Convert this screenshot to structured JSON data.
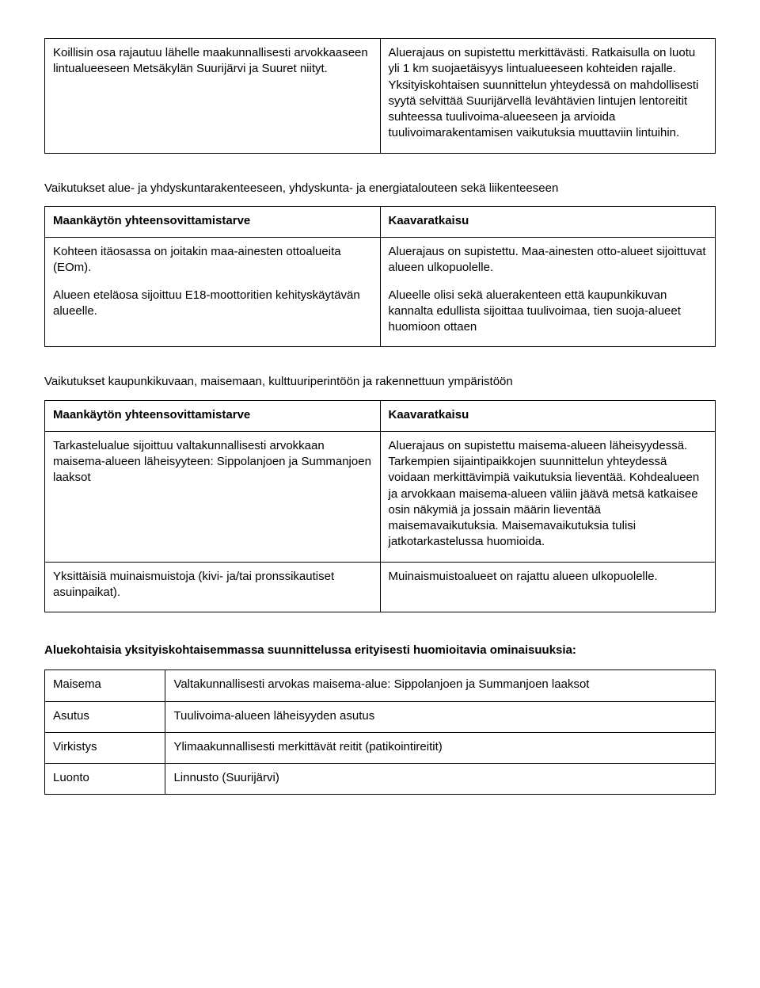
{
  "table1": {
    "row": {
      "left": "Koillisin osa rajautuu lähelle maakunnallisesti arvokkaaseen lintualueeseen Metsäkylän Suurijärvi ja Suuret niityt.",
      "right": "Aluerajaus on supistettu merkittävästi. Ratkaisulla on luotu yli 1 km suojaetäisyys lintualueeseen kohteiden rajalle. Yksityiskohtaisen suunnittelun yhteydessä on mahdollisesti syytä selvittää Suurijärvellä levähtävien lintujen lentoreitit suhteessa tuulivoima-alueeseen ja arvioida tuulivoimarakentamisen vaikutuksia muuttaviin lintuihin."
    }
  },
  "section2": {
    "heading": "Vaikutukset alue- ja yhdyskuntarakenteeseen, yhdyskunta- ja energiatalouteen sekä liikenteeseen",
    "header": {
      "left": "Maankäytön yhteensovittamistarve",
      "right": "Kaavaratkaisu"
    },
    "row1": {
      "left_a": "Kohteen itäosassa on joitakin maa-ainesten ottoalueita (EOm).",
      "left_b": "Alueen eteläosa sijoittuu E18-moottoritien kehityskäytävän alueelle.",
      "right_a": "Aluerajaus on supistettu. Maa-ainesten otto-alueet sijoittuvat alueen ulkopuolelle.",
      "right_b": "Alueelle olisi sekä aluerakenteen että kaupunkikuvan kannalta edullista sijoittaa tuulivoimaa, tien suoja-alueet huomioon ottaen"
    }
  },
  "section3": {
    "heading": "Vaikutukset kaupunkikuvaan, maisemaan, kulttuuriperintöön ja rakennettuun ympäristöön",
    "header": {
      "left": "Maankäytön yhteensovittamistarve",
      "right": "Kaavaratkaisu"
    },
    "row1": {
      "left": "Tarkastelualue sijoittuu valtakunnallisesti arvokkaan maisema-alueen läheisyyteen: Sippolanjoen ja Summanjoen laaksot",
      "right": "Aluerajaus on supistettu maisema-alueen läheisyydessä. Tarkempien sijaintipaikkojen suunnittelun yhteydessä voidaan merkittävimpiä vaikutuksia lieventää. Kohdealueen ja arvokkaan maisema-alueen väliin jäävä metsä katkaisee osin näkymiä ja jossain määrin lieventää maisemavaikutuksia. Maisemavaikutuksia tulisi jatkotarkastelussa huomioida."
    },
    "row2": {
      "left": "Yksittäisiä muinaismuistoja (kivi- ja/tai pronssikautiset asuinpaikat).",
      "right": "Muinaismuistoalueet on rajattu alueen ulkopuolelle."
    }
  },
  "features": {
    "heading": "Aluekohtaisia yksityiskohtaisemmassa suunnittelussa erityisesti huomioitavia ominaisuuksia:",
    "rows": [
      {
        "label": "Maisema",
        "value": "Valtakunnallisesti arvokas maisema-alue: Sippolanjoen ja Summanjoen laaksot"
      },
      {
        "label": "Asutus",
        "value": "Tuulivoima-alueen läheisyyden asutus"
      },
      {
        "label": "Virkistys",
        "value": "Ylimaakunnallisesti merkittävät reitit (patikointireitit)"
      },
      {
        "label": "Luonto",
        "value": "Linnusto (Suurijärvi)"
      }
    ]
  }
}
